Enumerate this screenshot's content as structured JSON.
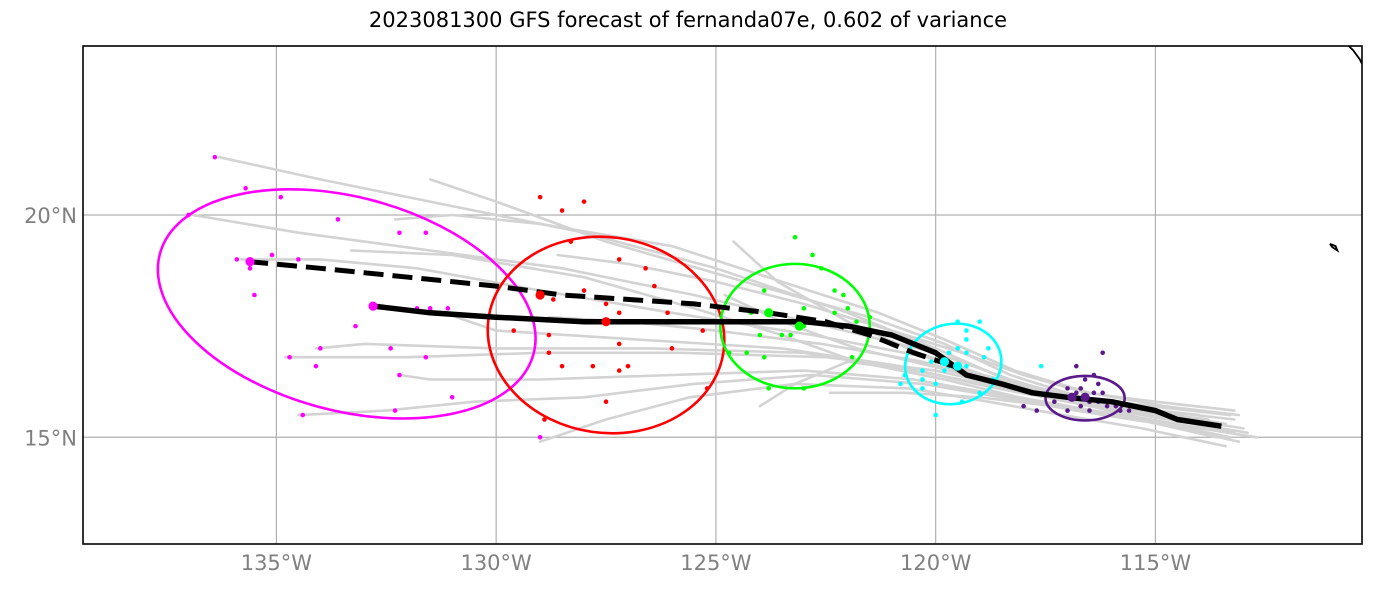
{
  "title": "2023081300 GFS forecast of fernanda07e, 0.602 of variance",
  "colors": {
    "ensemble_track": "#d3d3d3",
    "mean_track": "#000000",
    "grid": "#b0b0b0",
    "tick_text": "#808080",
    "coast": "#000000"
  },
  "chart_data": {
    "type": "scatter",
    "title": "2023081300 GFS forecast of fernanda07e, 0.602 of variance",
    "xlim": [
      -139.4,
      -110.3
    ],
    "ylim": [
      12.6,
      23.8
    ],
    "x_ticks": [
      {
        "value": -135,
        "label": "135°W"
      },
      {
        "value": -130,
        "label": "130°W"
      },
      {
        "value": -125,
        "label": "125°W"
      },
      {
        "value": -120,
        "label": "120°W"
      },
      {
        "value": -115,
        "label": "115°W"
      }
    ],
    "y_ticks": [
      {
        "value": 20,
        "label": "20°N"
      },
      {
        "value": 15,
        "label": "15°N"
      }
    ],
    "grid": true,
    "ensemble_tracks": [
      [
        [
          -113.1,
          15.5
        ],
        [
          -114.8,
          15.7
        ],
        [
          -116.5,
          16.0
        ],
        [
          -118.2,
          16.5
        ],
        [
          -119.8,
          17.2
        ],
        [
          -121.3,
          17.8
        ],
        [
          -123.5,
          18.5
        ],
        [
          -126.0,
          19.3
        ],
        [
          -129.0,
          19.8
        ],
        [
          -131.0,
          20.0
        ],
        [
          -132.3,
          19.9
        ]
      ],
      [
        [
          -113.2,
          15.4
        ],
        [
          -115.0,
          15.6
        ],
        [
          -116.7,
          15.9
        ],
        [
          -118.3,
          16.4
        ],
        [
          -119.8,
          17.1
        ],
        [
          -121.5,
          17.7
        ],
        [
          -124.0,
          18.4
        ],
        [
          -127.5,
          19.4
        ],
        [
          -130.0,
          20.3
        ],
        [
          -131.5,
          20.8
        ]
      ],
      [
        [
          -113.4,
          15.3
        ],
        [
          -115.1,
          15.6
        ],
        [
          -116.8,
          15.9
        ],
        [
          -118.4,
          16.3
        ],
        [
          -120.0,
          17.0
        ],
        [
          -122.0,
          17.8
        ],
        [
          -125.0,
          18.8
        ],
        [
          -128.0,
          19.6
        ],
        [
          -131.0,
          20.2
        ],
        [
          -134.0,
          20.8
        ],
        [
          -136.3,
          21.3
        ]
      ],
      [
        [
          -113.0,
          15.2
        ],
        [
          -114.9,
          15.5
        ],
        [
          -116.6,
          15.8
        ],
        [
          -118.3,
          16.3
        ],
        [
          -120.0,
          16.9
        ],
        [
          -122.5,
          17.5
        ],
        [
          -125.5,
          18.2
        ],
        [
          -128.5,
          18.8
        ],
        [
          -131.5,
          19.2
        ],
        [
          -134.5,
          19.6
        ],
        [
          -136.9,
          20.0
        ]
      ],
      [
        [
          -113.2,
          15.1
        ],
        [
          -115.0,
          15.5
        ],
        [
          -116.7,
          15.8
        ],
        [
          -118.4,
          16.2
        ],
        [
          -120.2,
          16.8
        ],
        [
          -122.8,
          17.3
        ],
        [
          -126.0,
          17.8
        ],
        [
          -129.0,
          18.3
        ],
        [
          -131.8,
          18.8
        ],
        [
          -134.0,
          19.0
        ],
        [
          -135.8,
          19.0
        ]
      ],
      [
        [
          -113.3,
          15.0
        ],
        [
          -115.2,
          15.4
        ],
        [
          -116.9,
          15.8
        ],
        [
          -118.5,
          16.2
        ],
        [
          -120.3,
          16.7
        ],
        [
          -122.6,
          17.1
        ],
        [
          -125.0,
          17.4
        ],
        [
          -127.0,
          17.6
        ],
        [
          -128.8,
          17.7
        ]
      ],
      [
        [
          -113.5,
          15.2
        ],
        [
          -115.3,
          15.5
        ],
        [
          -117.0,
          15.8
        ],
        [
          -118.6,
          16.1
        ],
        [
          -120.4,
          16.5
        ],
        [
          -123.0,
          16.9
        ],
        [
          -126.5,
          17.0
        ],
        [
          -130.0,
          17.0
        ],
        [
          -133.0,
          17.1
        ],
        [
          -134.1,
          17.0
        ]
      ],
      [
        [
          -112.9,
          15.1
        ],
        [
          -114.7,
          15.4
        ],
        [
          -116.5,
          15.7
        ],
        [
          -118.2,
          16.1
        ],
        [
          -120.0,
          16.5
        ],
        [
          -122.5,
          16.8
        ],
        [
          -125.8,
          16.9
        ],
        [
          -129.0,
          16.9
        ],
        [
          -132.0,
          16.8
        ],
        [
          -134.8,
          16.8
        ]
      ],
      [
        [
          -113.6,
          15.0
        ],
        [
          -115.4,
          15.4
        ],
        [
          -117.1,
          15.7
        ],
        [
          -118.8,
          16.0
        ],
        [
          -120.5,
          16.3
        ],
        [
          -123.0,
          16.5
        ],
        [
          -126.0,
          16.4
        ],
        [
          -129.0,
          16.3
        ],
        [
          -131.5,
          16.3
        ],
        [
          -132.2,
          16.4
        ]
      ],
      [
        [
          -113.1,
          14.9
        ],
        [
          -114.9,
          15.3
        ],
        [
          -116.8,
          15.6
        ],
        [
          -118.5,
          15.9
        ],
        [
          -120.3,
          16.2
        ],
        [
          -122.8,
          16.4
        ],
        [
          -125.5,
          16.2
        ],
        [
          -128.0,
          15.9
        ],
        [
          -130.5,
          15.8
        ],
        [
          -132.5,
          15.6
        ],
        [
          -134.5,
          15.5
        ]
      ],
      [
        [
          -113.4,
          14.8
        ],
        [
          -115.3,
          15.2
        ],
        [
          -117.1,
          15.5
        ],
        [
          -118.8,
          15.8
        ],
        [
          -120.6,
          16.1
        ],
        [
          -123.2,
          16.2
        ],
        [
          -125.6,
          15.9
        ],
        [
          -127.5,
          15.4
        ],
        [
          -129.0,
          14.9
        ]
      ],
      [
        [
          -113.7,
          15.3
        ],
        [
          -115.6,
          15.6
        ],
        [
          -117.4,
          15.9
        ],
        [
          -119.1,
          16.2
        ],
        [
          -120.8,
          16.6
        ],
        [
          -123.5,
          17.0
        ],
        [
          -126.8,
          17.2
        ],
        [
          -130.0,
          17.4
        ],
        [
          -131.2,
          17.8
        ]
      ],
      [
        [
          -112.7,
          15.0
        ],
        [
          -114.6,
          15.3
        ],
        [
          -116.4,
          15.6
        ],
        [
          -118.1,
          15.9
        ],
        [
          -119.8,
          16.3
        ],
        [
          -121.8,
          16.7
        ],
        [
          -123.5,
          17.3
        ],
        [
          -125.5,
          17.9
        ],
        [
          -128.0,
          18.6
        ],
        [
          -131.0,
          19.1
        ],
        [
          -133.3,
          19.2
        ]
      ],
      [
        [
          -113.2,
          15.6
        ],
        [
          -115.0,
          15.8
        ],
        [
          -116.6,
          16.0
        ],
        [
          -118.0,
          16.4
        ],
        [
          -119.4,
          16.9
        ],
        [
          -121.0,
          17.4
        ],
        [
          -123.0,
          18.0
        ],
        [
          -125.0,
          18.5
        ],
        [
          -127.0,
          18.9
        ],
        [
          -128.6,
          19.1
        ]
      ],
      [
        [
          -113.8,
          15.4
        ],
        [
          -115.5,
          15.6
        ],
        [
          -117.2,
          15.9
        ],
        [
          -118.9,
          16.2
        ],
        [
          -120.5,
          16.5
        ],
        [
          -122.0,
          16.7
        ],
        [
          -123.2,
          16.2
        ],
        [
          -124.0,
          15.7
        ]
      ],
      [
        [
          -113.3,
          15.5
        ],
        [
          -115.1,
          15.7
        ],
        [
          -116.8,
          15.9
        ],
        [
          -118.5,
          16.2
        ],
        [
          -120.1,
          16.6
        ],
        [
          -121.8,
          17.0
        ],
        [
          -123.5,
          17.6
        ],
        [
          -124.8,
          18.2
        ]
      ],
      [
        [
          -114.0,
          15.5
        ],
        [
          -115.8,
          15.7
        ],
        [
          -117.4,
          16.0
        ],
        [
          -118.9,
          16.4
        ],
        [
          -120.4,
          16.9
        ],
        [
          -122.0,
          17.6
        ],
        [
          -123.6,
          18.5
        ],
        [
          -124.6,
          19.4
        ]
      ],
      [
        [
          -113.9,
          15.2
        ],
        [
          -115.7,
          15.5
        ],
        [
          -117.3,
          15.7
        ],
        [
          -119.0,
          15.9
        ],
        [
          -120.7,
          16.0
        ],
        [
          -122.4,
          16.0
        ]
      ]
    ],
    "ensemble_points": [
      {
        "group": "magenta",
        "color": "#ff00ff",
        "x": [
          -136.4,
          -135.7,
          -134.9,
          -137.0,
          -133.6,
          -132.2,
          -131.6,
          -135.9,
          -134.5,
          -135.5,
          -133.2,
          -131.8,
          -131.5,
          -131.1,
          -134.0,
          -134.7,
          -132.4,
          -131.6,
          -132.2,
          -134.1,
          -131.0,
          -134.4,
          -132.3,
          -129.0,
          -135.6,
          -135.1
        ],
        "y": [
          21.3,
          20.6,
          20.4,
          20.0,
          19.9,
          19.6,
          19.6,
          19.0,
          19.0,
          18.2,
          17.5,
          17.9,
          17.9,
          17.9,
          17.0,
          16.8,
          17.0,
          16.8,
          16.4,
          16.6,
          15.9,
          15.5,
          15.6,
          15.0,
          18.8,
          19.1
        ]
      },
      {
        "group": "red",
        "color": "#ff0000",
        "x": [
          -129.0,
          -128.0,
          -128.5,
          -128.3,
          -127.2,
          -126.6,
          -126.4,
          -128.0,
          -128.7,
          -127.5,
          -127.2,
          -126.1,
          -127.0,
          -125.3,
          -129.6,
          -128.8,
          -127.2,
          -126.0,
          -128.8,
          -128.5,
          -127.8,
          -127.0,
          -127.2,
          -125.2,
          -127.5,
          -128.9
        ],
        "y": [
          20.4,
          20.3,
          20.1,
          19.4,
          19.0,
          18.8,
          18.4,
          18.3,
          18.1,
          18.0,
          17.8,
          17.8,
          17.6,
          17.4,
          17.4,
          17.3,
          17.1,
          17.0,
          16.9,
          16.6,
          16.6,
          16.6,
          16.5,
          16.1,
          15.8,
          15.4
        ]
      },
      {
        "group": "green",
        "color": "#00ff00",
        "x": [
          -123.2,
          -122.8,
          -122.6,
          -123.9,
          -122.3,
          -122.1,
          -122.0,
          -122.3,
          -123.0,
          -124.2,
          -121.5,
          -123.4,
          -124.0,
          -121.8,
          -123.5,
          -123.0,
          -123.3,
          -124.7,
          -124.3,
          -123.9,
          -121.9,
          -123.8,
          -123.0
        ],
        "y": [
          19.5,
          19.1,
          18.8,
          18.3,
          18.3,
          18.2,
          17.9,
          17.8,
          17.9,
          17.8,
          17.7,
          17.6,
          17.3,
          17.6,
          17.3,
          17.5,
          17.3,
          16.9,
          16.9,
          16.8,
          16.8,
          16.1,
          16.1
        ]
      },
      {
        "group": "cyan",
        "color": "#00ffff",
        "x": [
          -119.5,
          -119.0,
          -119.3,
          -119.3,
          -118.8,
          -119.5,
          -119.7,
          -119.3,
          -118.9,
          -120.1,
          -119.7,
          -119.3,
          -117.6,
          -120.3,
          -119.8,
          -120.7,
          -118.7,
          -120.8,
          -120.3,
          -120.0,
          -120.0,
          -120.3,
          -119.0,
          -119.4
        ],
        "y": [
          17.6,
          17.6,
          17.4,
          17.2,
          17.0,
          17.0,
          16.9,
          16.9,
          16.8,
          16.7,
          16.6,
          16.6,
          16.6,
          16.5,
          16.5,
          16.4,
          16.3,
          16.2,
          16.3,
          16.2,
          15.5,
          16.1,
          16.0,
          15.8
        ]
      },
      {
        "group": "purple",
        "color": "#5a1a8a",
        "x": [
          -116.2,
          -116.8,
          -116.4,
          -116.6,
          -116.3,
          -117.0,
          -116.7,
          -116.4,
          -116.8,
          -116.2,
          -116.9,
          -116.6,
          -116.3,
          -117.3,
          -116.5,
          -116.0,
          -115.9,
          -116.7,
          -116.1,
          -117.0,
          -116.5,
          -115.6,
          -115.8,
          -118.0,
          -117.7,
          -116.5
        ],
        "y": [
          16.9,
          16.6,
          16.4,
          16.3,
          16.2,
          16.1,
          16.1,
          16.0,
          16.0,
          16.0,
          15.9,
          15.9,
          15.8,
          15.8,
          15.8,
          15.8,
          15.7,
          15.7,
          15.7,
          15.6,
          15.6,
          15.6,
          15.6,
          15.7,
          15.6,
          15.8
        ]
      }
    ],
    "ellipses": [
      {
        "color": "#ff00ff",
        "center": [
          -133.4,
          18.0
        ],
        "half_width": 4.4,
        "half_height": 2.4,
        "angle_deg": 15
      },
      {
        "color": "#ff0000",
        "center": [
          -127.5,
          17.3
        ],
        "half_width": 2.7,
        "half_height": 2.2,
        "angle_deg": 8
      },
      {
        "color": "#00ff00",
        "center": [
          -123.2,
          17.5
        ],
        "half_width": 1.7,
        "half_height": 1.4,
        "angle_deg": 0
      },
      {
        "color": "#00ffff",
        "center": [
          -119.6,
          16.65
        ],
        "half_width": 1.1,
        "half_height": 0.9,
        "angle_deg": -10
      },
      {
        "color": "#5a1a8a",
        "center": [
          -116.6,
          15.88
        ],
        "half_width": 0.9,
        "half_height": 0.5,
        "angle_deg": 0
      }
    ],
    "mean_track": [
      [
        -113.5,
        15.25
      ],
      [
        -114.5,
        15.4
      ],
      [
        -115.0,
        15.6
      ],
      [
        -116.0,
        15.8
      ],
      [
        -117.0,
        15.9
      ],
      [
        -117.8,
        16.0
      ],
      [
        -118.5,
        16.2
      ],
      [
        -119.3,
        16.4
      ],
      [
        -120.0,
        16.9
      ],
      [
        -121.0,
        17.3
      ],
      [
        -122.0,
        17.5
      ],
      [
        -123.0,
        17.6
      ],
      [
        -124.0,
        17.6
      ],
      [
        -125.0,
        17.6
      ],
      [
        -126.5,
        17.6
      ],
      [
        -128.0,
        17.6
      ],
      [
        -130.0,
        17.7
      ],
      [
        -131.5,
        17.8
      ],
      [
        -132.8,
        17.95
      ]
    ],
    "mean_track_markers": [
      {
        "color": "#ff00ff",
        "x": -132.8,
        "y": 17.95
      },
      {
        "color": "#ff0000",
        "x": -127.5,
        "y": 17.6
      },
      {
        "color": "#00ff00",
        "x": -123.1,
        "y": 17.5
      },
      {
        "color": "#00ffff",
        "x": -119.5,
        "y": 16.6
      },
      {
        "color": "#5a1a8a",
        "x": -116.6,
        "y": 15.9
      }
    ],
    "reference_track": [
      [
        -119.6,
        16.6
      ],
      [
        -120.5,
        16.9
      ],
      [
        -121.5,
        17.3
      ],
      [
        -122.5,
        17.6
      ],
      [
        -123.8,
        17.8
      ],
      [
        -125.5,
        18.0
      ],
      [
        -127.0,
        18.1
      ],
      [
        -128.5,
        18.2
      ],
      [
        -130.0,
        18.4
      ],
      [
        -132.0,
        18.6
      ],
      [
        -134.0,
        18.8
      ],
      [
        -135.6,
        18.95
      ]
    ],
    "reference_track_markers": [
      {
        "color": "#ff00ff",
        "x": -135.6,
        "y": 18.95
      },
      {
        "color": "#ff0000",
        "x": -129.0,
        "y": 18.2
      },
      {
        "color": "#00ff00",
        "x": -123.8,
        "y": 17.8
      },
      {
        "color": "#00ffff",
        "x": -119.8,
        "y": 16.7
      },
      {
        "color": "#5a1a8a",
        "x": -116.9,
        "y": 15.9
      }
    ],
    "coastlines": [
      [
        [
          -110.6,
          23.8
        ],
        [
          -110.5,
          23.7
        ],
        [
          -110.35,
          23.5
        ],
        [
          -110.3,
          23.4
        ]
      ],
      [
        [
          -111.03,
          19.35
        ],
        [
          -110.9,
          19.3
        ],
        [
          -110.86,
          19.2
        ],
        [
          -110.98,
          19.28
        ],
        [
          -111.03,
          19.35
        ]
      ]
    ]
  }
}
